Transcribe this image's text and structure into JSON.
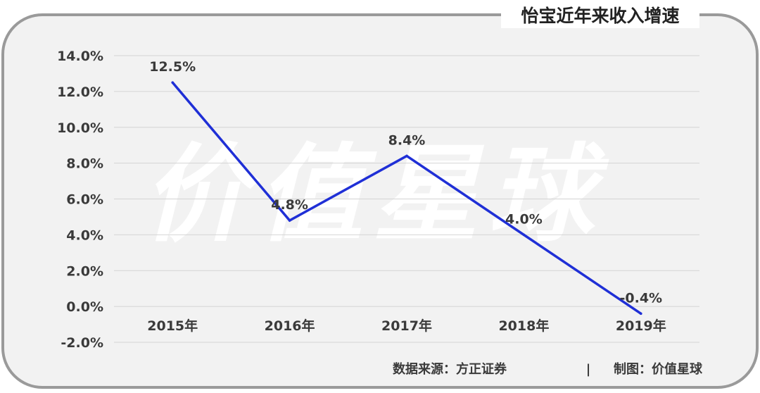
{
  "title": "怡宝近年来收入增速",
  "watermark": "价值星球",
  "source": "数据来源：方正证券",
  "separator": "|",
  "credit": "制图：价值星球",
  "colors": {
    "panel": "#f2f2f2",
    "border": "#9a9a9a",
    "grid": "#d4d4d4",
    "line": "#1f2fd6",
    "text": "#3a3a3a",
    "watermark": "#ffffff"
  },
  "chart_data": {
    "type": "line",
    "title": "怡宝近年来收入增速",
    "categories": [
      "2015年",
      "2016年",
      "2017年",
      "2018年",
      "2019年"
    ],
    "values": [
      12.5,
      4.8,
      8.4,
      4.0,
      -0.4
    ],
    "data_labels": [
      "12.5%",
      "4.8%",
      "8.4%",
      "4.0%",
      "-0.4%"
    ],
    "y_ticks": [
      "14.0%",
      "12.0%",
      "10.0%",
      "8.0%",
      "6.0%",
      "4.0%",
      "2.0%",
      "0.0%",
      "-2.0%"
    ],
    "ylim": [
      -2,
      14
    ],
    "grid": true,
    "legend": "none"
  }
}
